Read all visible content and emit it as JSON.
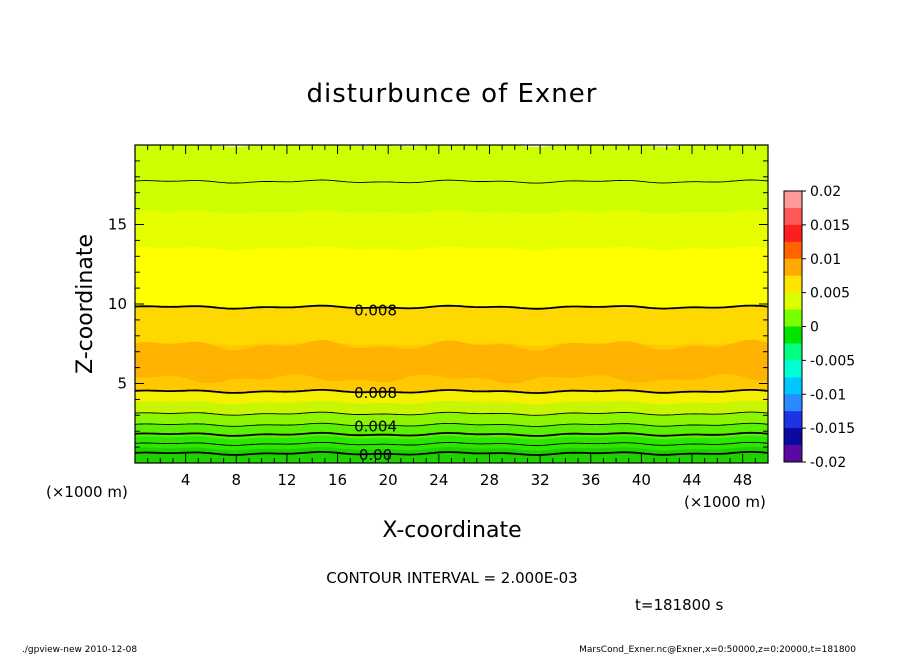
{
  "chart_data": {
    "type": "heatmap",
    "title": "disturbunce of Exner",
    "xlabel": "X-coordinate",
    "ylabel": "Z-coordinate",
    "x_unit_left": "(×1000 m)",
    "x_unit_right": "(×1000 m)",
    "xlim": [
      0,
      50
    ],
    "ylim": [
      0,
      20
    ],
    "x_ticks": [
      "4",
      "8",
      "12",
      "16",
      "20",
      "24",
      "28",
      "32",
      "36",
      "40",
      "44",
      "48"
    ],
    "y_ticks": [
      "5",
      "10",
      "15"
    ],
    "colorbar": {
      "labels": [
        "0.02",
        "0.015",
        "0.01",
        "0.005",
        "0",
        "-0.005",
        "-0.01",
        "-0.015",
        "-0.02"
      ],
      "levels": [
        0.02,
        0.015,
        0.01,
        0.005,
        0,
        -0.005,
        -0.01,
        -0.015,
        -0.02
      ],
      "colors": [
        "#ff9a9a",
        "#ff5858",
        "#ff1e1e",
        "#ff6400",
        "#ffaa00",
        "#ffe400",
        "#dcff00",
        "#78ff00",
        "#00e400",
        "#00ff82",
        "#00ffd2",
        "#00c8ff",
        "#2a8aff",
        "#1e32e6",
        "#0a0aa0",
        "#5a0aa0"
      ]
    },
    "contour_labels": [
      {
        "label": "0.008",
        "x": 19,
        "z": 9.6
      },
      {
        "label": "0.008",
        "x": 19,
        "z": 4.4
      },
      {
        "label": "0.004",
        "x": 19,
        "z": 2.3
      },
      {
        "label": "0.00",
        "x": 19,
        "z": 0.5
      }
    ],
    "bands": [
      {
        "z_top": 0.9,
        "color": "#1ed200",
        "value": 0.001
      },
      {
        "z_top": 1.6,
        "color": "#2ce800",
        "value": 0.002
      },
      {
        "z_top": 2.4,
        "color": "#5af000",
        "value": 0.003
      },
      {
        "z_top": 3.1,
        "color": "#8cf500",
        "value": 0.004
      },
      {
        "z_top": 3.8,
        "color": "#c8f500",
        "value": 0.005
      },
      {
        "z_top": 4.5,
        "color": "#f5f000",
        "value": 0.006
      },
      {
        "z_top": 7.5,
        "color": "#ffc800",
        "value": 0.009
      },
      {
        "z_top": 9.8,
        "color": "#ffd800",
        "value": 0.008
      },
      {
        "z_top": 13.5,
        "color": "#ffff00",
        "value": 0.007
      },
      {
        "z_top": 15.8,
        "color": "#e6ff00",
        "value": 0.006
      },
      {
        "z_top": 20,
        "color": "#ccff00",
        "value": 0.005
      }
    ],
    "warm_core": {
      "z_low": 5.3,
      "z_high": 7.4,
      "color": "#ffb200"
    },
    "contours": [
      {
        "z": 0.6,
        "bold": true
      },
      {
        "z": 1.2,
        "bold": false
      },
      {
        "z": 1.8,
        "bold": true
      },
      {
        "z": 2.4,
        "bold": false
      },
      {
        "z": 3.1,
        "bold": false
      },
      {
        "z": 4.5,
        "bold": true
      },
      {
        "z": 9.8,
        "bold": true
      },
      {
        "z": 17.7,
        "bold": false
      }
    ],
    "annotation": "CONTOUR INTERVAL = 2.000E-03",
    "time_label": "t=181800 s"
  },
  "footer": {
    "left": "./gpview-new  2010-12-08",
    "right": "MarsCond_Exner.nc@Exner,x=0:50000,z=0:20000,t=181800"
  }
}
